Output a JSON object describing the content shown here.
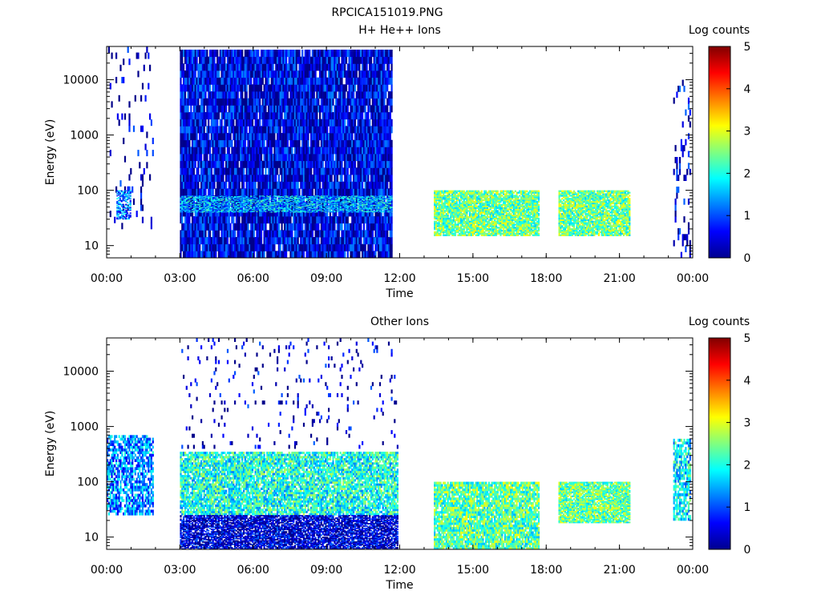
{
  "figure_title": "RPCICA151019.PNG",
  "chart_data": [
    {
      "type": "heatmap",
      "title": "H+ He++ Ions",
      "xlabel": "Time",
      "ylabel": "Energy (eV)",
      "x_ticks": [
        "00:00",
        "03:00",
        "06:00",
        "09:00",
        "12:00",
        "15:00",
        "18:00",
        "21:00",
        "00:00"
      ],
      "x_range_hours": [
        0,
        24
      ],
      "y_scale": "log",
      "y_range": [
        6,
        40000
      ],
      "y_ticks": [
        10,
        100,
        1000,
        10000
      ],
      "y_tick_labels": [
        "10",
        "100",
        "1000",
        "10000"
      ],
      "colorbar": {
        "label": "Log counts",
        "range": [
          0,
          5
        ],
        "ticks": [
          "0",
          "1",
          "2",
          "3",
          "4",
          "5"
        ]
      },
      "regions": [
        {
          "t": [
            0.0,
            1.9
          ],
          "e": [
            20,
            40000
          ],
          "level": 0.3,
          "density": 0.08
        },
        {
          "t": [
            0.4,
            1.0
          ],
          "e": [
            30,
            100
          ],
          "level": 1.2,
          "density": 0.6
        },
        {
          "t": [
            3.0,
            11.7
          ],
          "e": [
            6,
            35000
          ],
          "level": 0.5,
          "density": 0.95
        },
        {
          "t": [
            3.0,
            11.7
          ],
          "e": [
            40,
            80
          ],
          "level": 1.6,
          "density": 0.5
        },
        {
          "t": [
            13.4,
            17.7
          ],
          "e": [
            15,
            100
          ],
          "level": 2.4,
          "density": 0.9
        },
        {
          "t": [
            18.5,
            21.4
          ],
          "e": [
            15,
            100
          ],
          "level": 2.4,
          "density": 0.9
        },
        {
          "t": [
            23.2,
            23.9
          ],
          "e": [
            6,
            10000
          ],
          "level": 0.4,
          "density": 0.15
        }
      ]
    },
    {
      "type": "heatmap",
      "title": "Other Ions",
      "xlabel": "Time",
      "ylabel": "Energy (eV)",
      "x_ticks": [
        "00:00",
        "03:00",
        "06:00",
        "09:00",
        "12:00",
        "15:00",
        "18:00",
        "21:00",
        "00:00"
      ],
      "x_range_hours": [
        0,
        24
      ],
      "y_scale": "log",
      "y_range": [
        6,
        40000
      ],
      "y_ticks": [
        10,
        100,
        1000,
        10000
      ],
      "y_tick_labels": [
        "10",
        "100",
        "1000",
        "10000"
      ],
      "colorbar": {
        "label": "Log counts",
        "range": [
          0,
          5
        ],
        "ticks": [
          "0",
          "1",
          "2",
          "3",
          "4",
          "5"
        ]
      },
      "regions": [
        {
          "t": [
            0.0,
            1.9
          ],
          "e": [
            25,
            700
          ],
          "level": 1.3,
          "density": 0.7
        },
        {
          "t": [
            3.0,
            11.9
          ],
          "e": [
            25,
            350
          ],
          "level": 2.0,
          "density": 0.85
        },
        {
          "t": [
            3.0,
            11.9
          ],
          "e": [
            6,
            25
          ],
          "level": 0.4,
          "density": 0.8
        },
        {
          "t": [
            3.0,
            11.9
          ],
          "e": [
            400,
            40000
          ],
          "level": 0.3,
          "density": 0.05
        },
        {
          "t": [
            13.4,
            17.7
          ],
          "e": [
            6,
            100
          ],
          "level": 2.3,
          "density": 0.9
        },
        {
          "t": [
            18.5,
            21.4
          ],
          "e": [
            18,
            100
          ],
          "level": 2.4,
          "density": 0.9
        },
        {
          "t": [
            23.2,
            23.9
          ],
          "e": [
            20,
            600
          ],
          "level": 1.8,
          "density": 0.7
        }
      ]
    }
  ]
}
